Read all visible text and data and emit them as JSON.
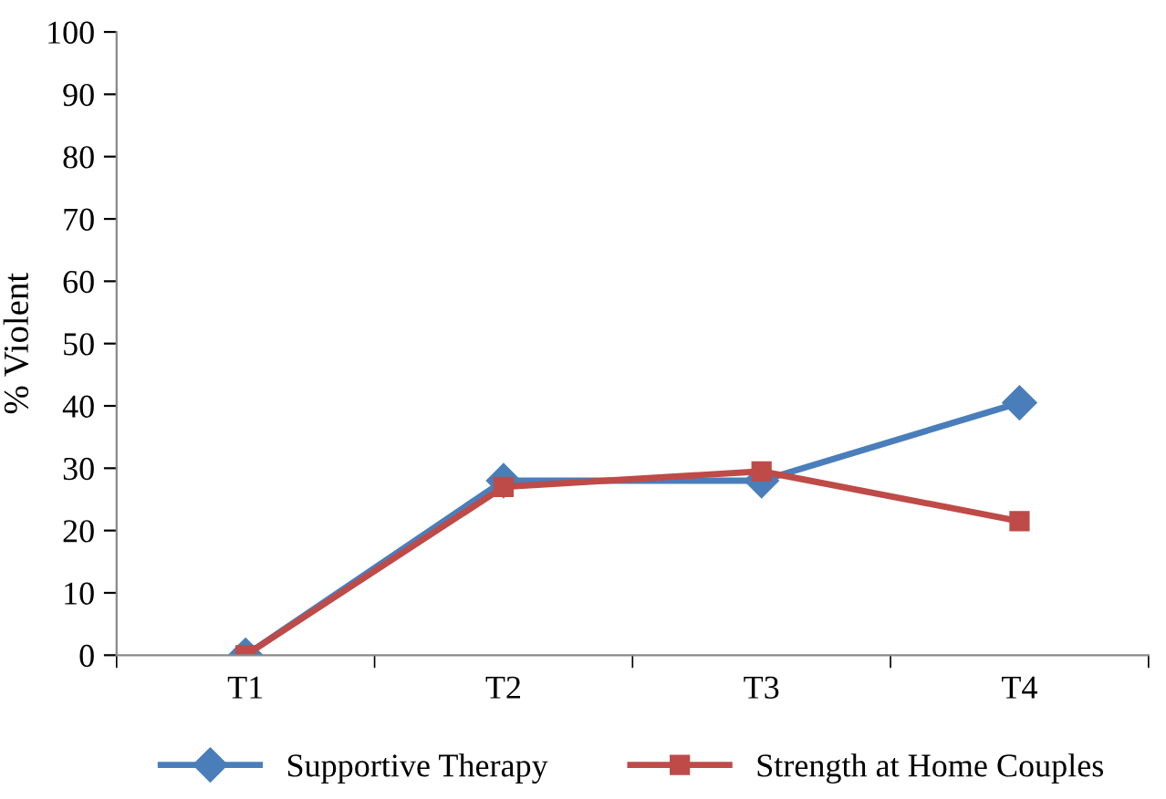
{
  "chart_data": {
    "type": "line",
    "ylabel": "% Violent",
    "categories": [
      "T1",
      "T2",
      "T3",
      "T4"
    ],
    "series": [
      {
        "name": "Supportive Therapy",
        "color": "#4a7ebb",
        "values": [
          0,
          28,
          28,
          40.5
        ],
        "marker": "diamond"
      },
      {
        "name": "Strength at Home Couples",
        "color": "#be4b48",
        "values": [
          0,
          27,
          29.5,
          21.5
        ],
        "marker": "square"
      }
    ],
    "ylim": [
      0,
      100
    ],
    "yticks": [
      0,
      10,
      20,
      30,
      40,
      50,
      60,
      70,
      80,
      90,
      100
    ],
    "grid": false,
    "legend": "bottom",
    "line_style": "solid"
  }
}
